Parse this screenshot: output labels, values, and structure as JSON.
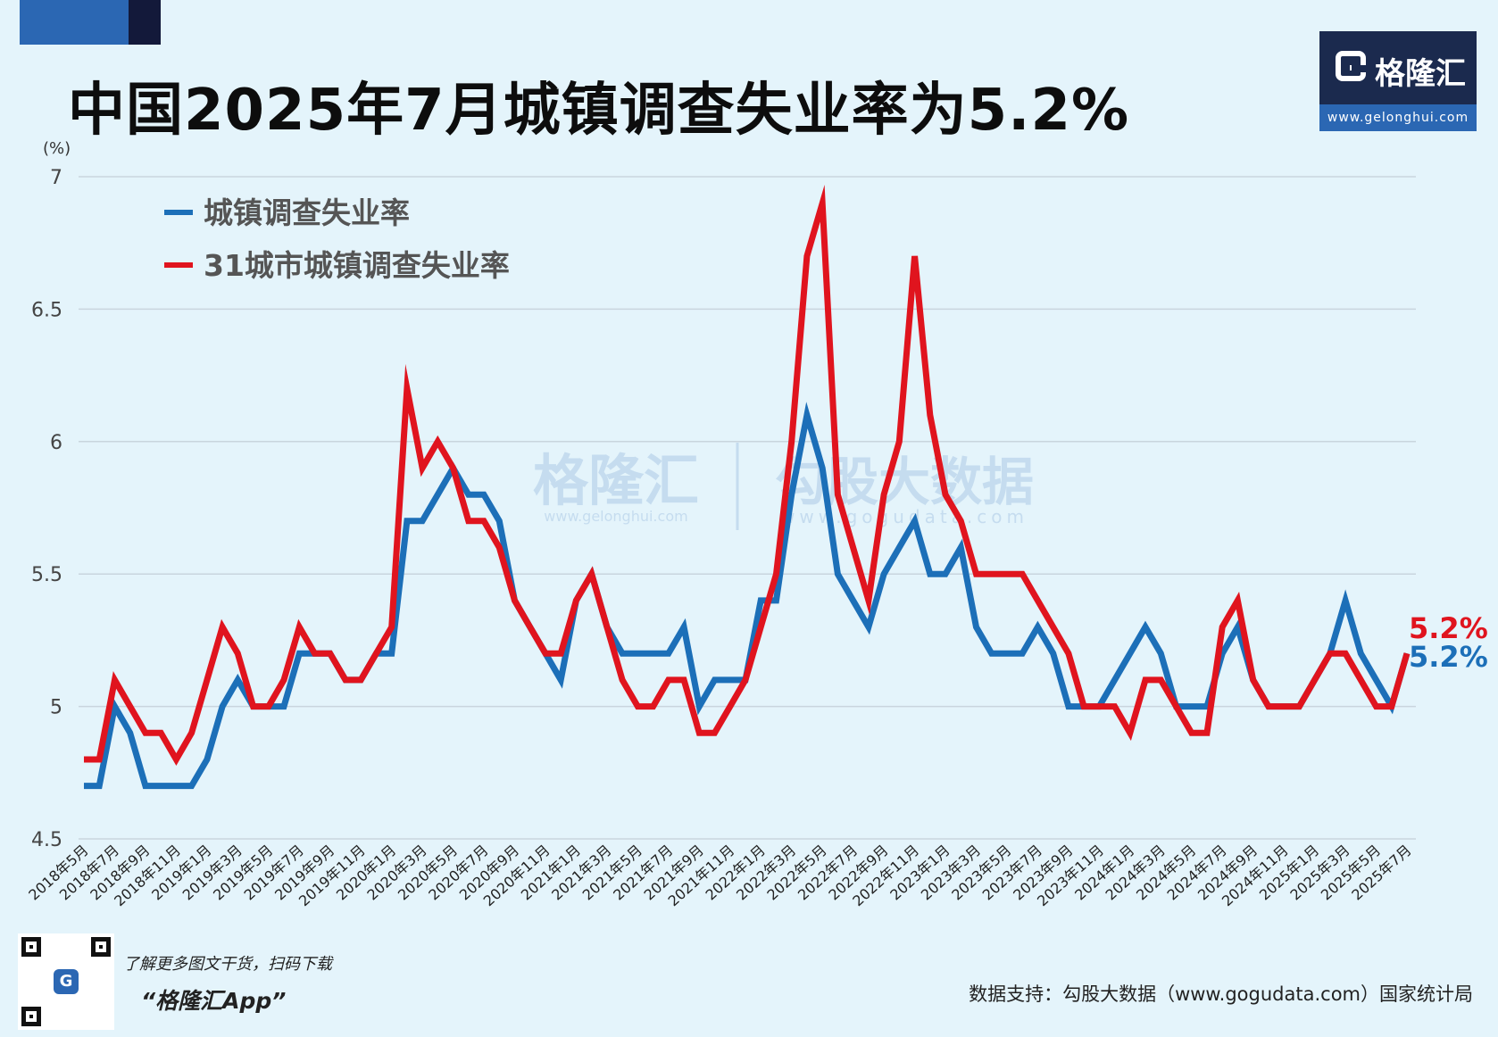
{
  "header": {
    "title": "中国2025年7月城镇调查失业率为5.2%"
  },
  "logo": {
    "name": "格隆汇",
    "url": "www.gelonghui.com"
  },
  "watermark": {
    "brand_name": "格隆汇",
    "brand_url": "www.gelonghui.com",
    "data_name": "勾股大数据",
    "data_url": "www.gogudata.com"
  },
  "colors": {
    "series_blue": "#1c6fb8",
    "series_red": "#e0141e",
    "background": "#e4f4fb",
    "grid": "#c9d5de"
  },
  "chart_data": {
    "type": "line",
    "y_unit_label": "(%)",
    "ylim": [
      4.5,
      7
    ],
    "yticks": [
      "4.5",
      "5",
      "5.5",
      "6",
      "6.5",
      "7"
    ],
    "grid": "horizontal",
    "legend_position": "top-left",
    "x": [
      "2018年5月",
      "2018年6月",
      "2018年7月",
      "2018年8月",
      "2018年9月",
      "2018年10月",
      "2018年11月",
      "2018年12月",
      "2019年1月",
      "2019年2月",
      "2019年3月",
      "2019年4月",
      "2019年5月",
      "2019年6月",
      "2019年7月",
      "2019年8月",
      "2019年9月",
      "2019年10月",
      "2019年11月",
      "2019年12月",
      "2020年1月",
      "2020年2月",
      "2020年3月",
      "2020年4月",
      "2020年5月",
      "2020年6月",
      "2020年7月",
      "2020年8月",
      "2020年9月",
      "2020年10月",
      "2020年11月",
      "2020年12月",
      "2021年1月",
      "2021年2月",
      "2021年3月",
      "2021年4月",
      "2021年5月",
      "2021年6月",
      "2021年7月",
      "2021年8月",
      "2021年9月",
      "2021年10月",
      "2021年11月",
      "2021年12月",
      "2022年1月",
      "2022年2月",
      "2022年3月",
      "2022年4月",
      "2022年5月",
      "2022年6月",
      "2022年7月",
      "2022年8月",
      "2022年9月",
      "2022年10月",
      "2022年11月",
      "2022年12月",
      "2023年1月",
      "2023年2月",
      "2023年3月",
      "2023年4月",
      "2023年5月",
      "2023年6月",
      "2023年7月",
      "2023年8月",
      "2023年9月",
      "2023年10月",
      "2023年11月",
      "2023年12月",
      "2024年1月",
      "2024年2月",
      "2024年3月",
      "2024年4月",
      "2024年5月",
      "2024年6月",
      "2024年7月",
      "2024年8月",
      "2024年9月",
      "2024年10月",
      "2024年11月",
      "2024年12月",
      "2025年1月",
      "2025年2月",
      "2025年3月",
      "2025年4月",
      "2025年5月",
      "2025年6月",
      "2025年7月"
    ],
    "x_tick_labels": [
      "2018年5月",
      "2018年7月",
      "2018年9月",
      "2018年11月",
      "2019年1月",
      "2019年3月",
      "2019年5月",
      "2019年7月",
      "2019年9月",
      "2019年11月",
      "2020年1月",
      "2020年3月",
      "2020年5月",
      "2020年7月",
      "2020年9月",
      "2020年11月",
      "2021年1月",
      "2021年3月",
      "2021年5月",
      "2021年7月",
      "2021年9月",
      "2021年11月",
      "2022年1月",
      "2022年3月",
      "2022年5月",
      "2022年7月",
      "2022年9月",
      "2022年11月",
      "2023年1月",
      "2023年3月",
      "2023年5月",
      "2023年7月",
      "2023年9月",
      "2023年11月",
      "2024年1月",
      "2024年3月",
      "2024年5月",
      "2024年7月",
      "2024年9月",
      "2024年11月",
      "2025年1月",
      "2025年3月",
      "2025年5月",
      "2025年7月"
    ],
    "series": [
      {
        "name": "城镇调查失业率",
        "color": "#1c6fb8",
        "end_label": "5.2%",
        "values": [
          4.7,
          4.7,
          5.0,
          4.9,
          4.7,
          4.7,
          4.7,
          4.7,
          4.8,
          5.0,
          5.1,
          5.0,
          5.0,
          5.0,
          5.2,
          5.2,
          5.2,
          5.1,
          5.1,
          5.2,
          5.2,
          5.7,
          5.7,
          5.8,
          5.9,
          5.8,
          5.8,
          5.7,
          5.4,
          5.3,
          5.2,
          5.1,
          5.4,
          5.5,
          5.3,
          5.2,
          5.2,
          5.2,
          5.2,
          5.3,
          5.0,
          5.1,
          5.1,
          5.1,
          5.4,
          5.4,
          5.8,
          6.1,
          5.9,
          5.5,
          5.4,
          5.3,
          5.5,
          5.6,
          5.7,
          5.5,
          5.5,
          5.6,
          5.3,
          5.2,
          5.2,
          5.2,
          5.3,
          5.2,
          5.0,
          5.0,
          5.0,
          5.1,
          5.2,
          5.3,
          5.2,
          5.0,
          5.0,
          5.0,
          5.2,
          5.3,
          5.1,
          5.0,
          5.0,
          5.0,
          5.1,
          5.2,
          5.4,
          5.2,
          5.1,
          5.0,
          5.2
        ]
      },
      {
        "name": "31城市城镇调查失业率",
        "color": "#e0141e",
        "end_label": "5.2%",
        "values": [
          4.8,
          4.8,
          5.1,
          5.0,
          4.9,
          4.9,
          4.8,
          4.9,
          5.1,
          5.3,
          5.2,
          5.0,
          5.0,
          5.1,
          5.3,
          5.2,
          5.2,
          5.1,
          5.1,
          5.2,
          5.3,
          6.2,
          5.9,
          6.0,
          5.9,
          5.7,
          5.7,
          5.6,
          5.4,
          5.3,
          5.2,
          5.2,
          5.4,
          5.5,
          5.3,
          5.1,
          5.0,
          5.0,
          5.1,
          5.1,
          4.9,
          4.9,
          5.0,
          5.1,
          5.3,
          5.5,
          6.0,
          6.7,
          6.9,
          5.8,
          5.6,
          5.4,
          5.8,
          6.0,
          6.7,
          6.1,
          5.8,
          5.7,
          5.5,
          5.5,
          5.5,
          5.5,
          5.4,
          5.3,
          5.2,
          5.0,
          5.0,
          5.0,
          4.9,
          5.1,
          5.1,
          5.0,
          4.9,
          4.9,
          5.3,
          5.4,
          5.1,
          5.0,
          5.0,
          5.0,
          5.1,
          5.2,
          5.2,
          5.1,
          5.0,
          5.0,
          5.2
        ]
      }
    ]
  },
  "footer": {
    "promo_line": "了解更多图文干货，扫码下载",
    "app_name": "“格隆汇App”",
    "qr_badge": "G",
    "source": "数据支持：勾股大数据（www.gogudata.com）国家统计局"
  }
}
